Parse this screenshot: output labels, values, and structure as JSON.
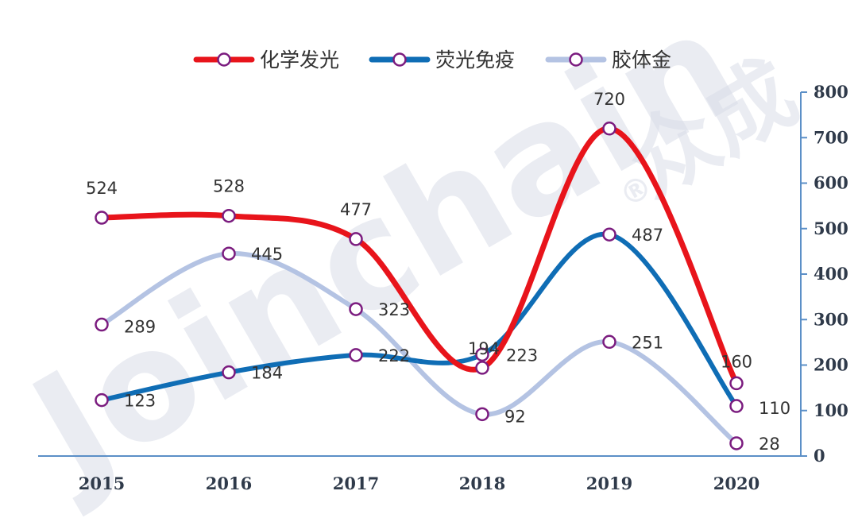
{
  "watermark": {
    "brand": "Joinchain",
    "brand_cn": "众成",
    "registered": "®"
  },
  "chart_data": {
    "type": "line",
    "categories": [
      "2015",
      "2016",
      "2017",
      "2018",
      "2019",
      "2020"
    ],
    "series": [
      {
        "name": "化学发光",
        "color": "#e8141b",
        "values": [
          524,
          528,
          477,
          194,
          720,
          160
        ]
      },
      {
        "name": "荧光免疫",
        "color": "#0f6db5",
        "values": [
          123,
          184,
          222,
          223,
          487,
          110
        ]
      },
      {
        "name": "胶体金",
        "color": "#b4c3e3",
        "values": [
          289,
          445,
          323,
          92,
          251,
          28
        ]
      }
    ],
    "yticks": [
      0,
      100,
      200,
      300,
      400,
      500,
      600,
      700,
      800
    ],
    "ylim": [
      0,
      800
    ],
    "y_axis_side": "right",
    "legend_position": "top",
    "marker_color": "#7b1c7f",
    "grid": false
  }
}
